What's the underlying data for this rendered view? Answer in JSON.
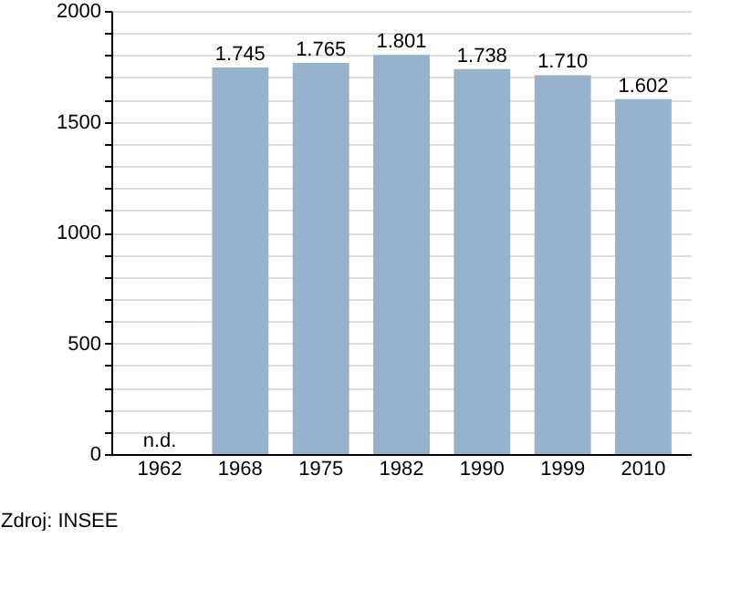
{
  "chart_data": {
    "type": "bar",
    "categories": [
      "1962",
      "1968",
      "1975",
      "1982",
      "1990",
      "1999",
      "2010"
    ],
    "values": [
      null,
      1745,
      1765,
      1801,
      1738,
      1710,
      1602
    ],
    "value_labels": [
      "n.d.",
      "1.745",
      "1.765",
      "1.801",
      "1.738",
      "1.710",
      "1.602"
    ],
    "color": "#97b2cc",
    "ylim": [
      0,
      2000
    ],
    "yticks": [
      0,
      {
        "value": 100,
        "label": null
      },
      {
        "value": 200,
        "label": null
      },
      {
        "value": 300,
        "label": null
      },
      {
        "value": 400,
        "label": null
      },
      500,
      {
        "value": 600,
        "label": null
      },
      {
        "value": 700,
        "label": null
      },
      {
        "value": 800,
        "label": null
      },
      {
        "value": 900,
        "label": null
      },
      1000,
      {
        "value": 1100,
        "label": null
      },
      {
        "value": 1200,
        "label": null
      },
      {
        "value": 1300,
        "label": null
      },
      {
        "value": 1400,
        "label": null
      },
      1500,
      {
        "value": 1600,
        "label": null
      },
      {
        "value": 1700,
        "label": null
      },
      {
        "value": 1800,
        "label": null
      },
      {
        "value": 1900,
        "label": null
      },
      2000
    ],
    "grid": "y",
    "annotations": [
      "Zdroj: INSEE"
    ]
  }
}
